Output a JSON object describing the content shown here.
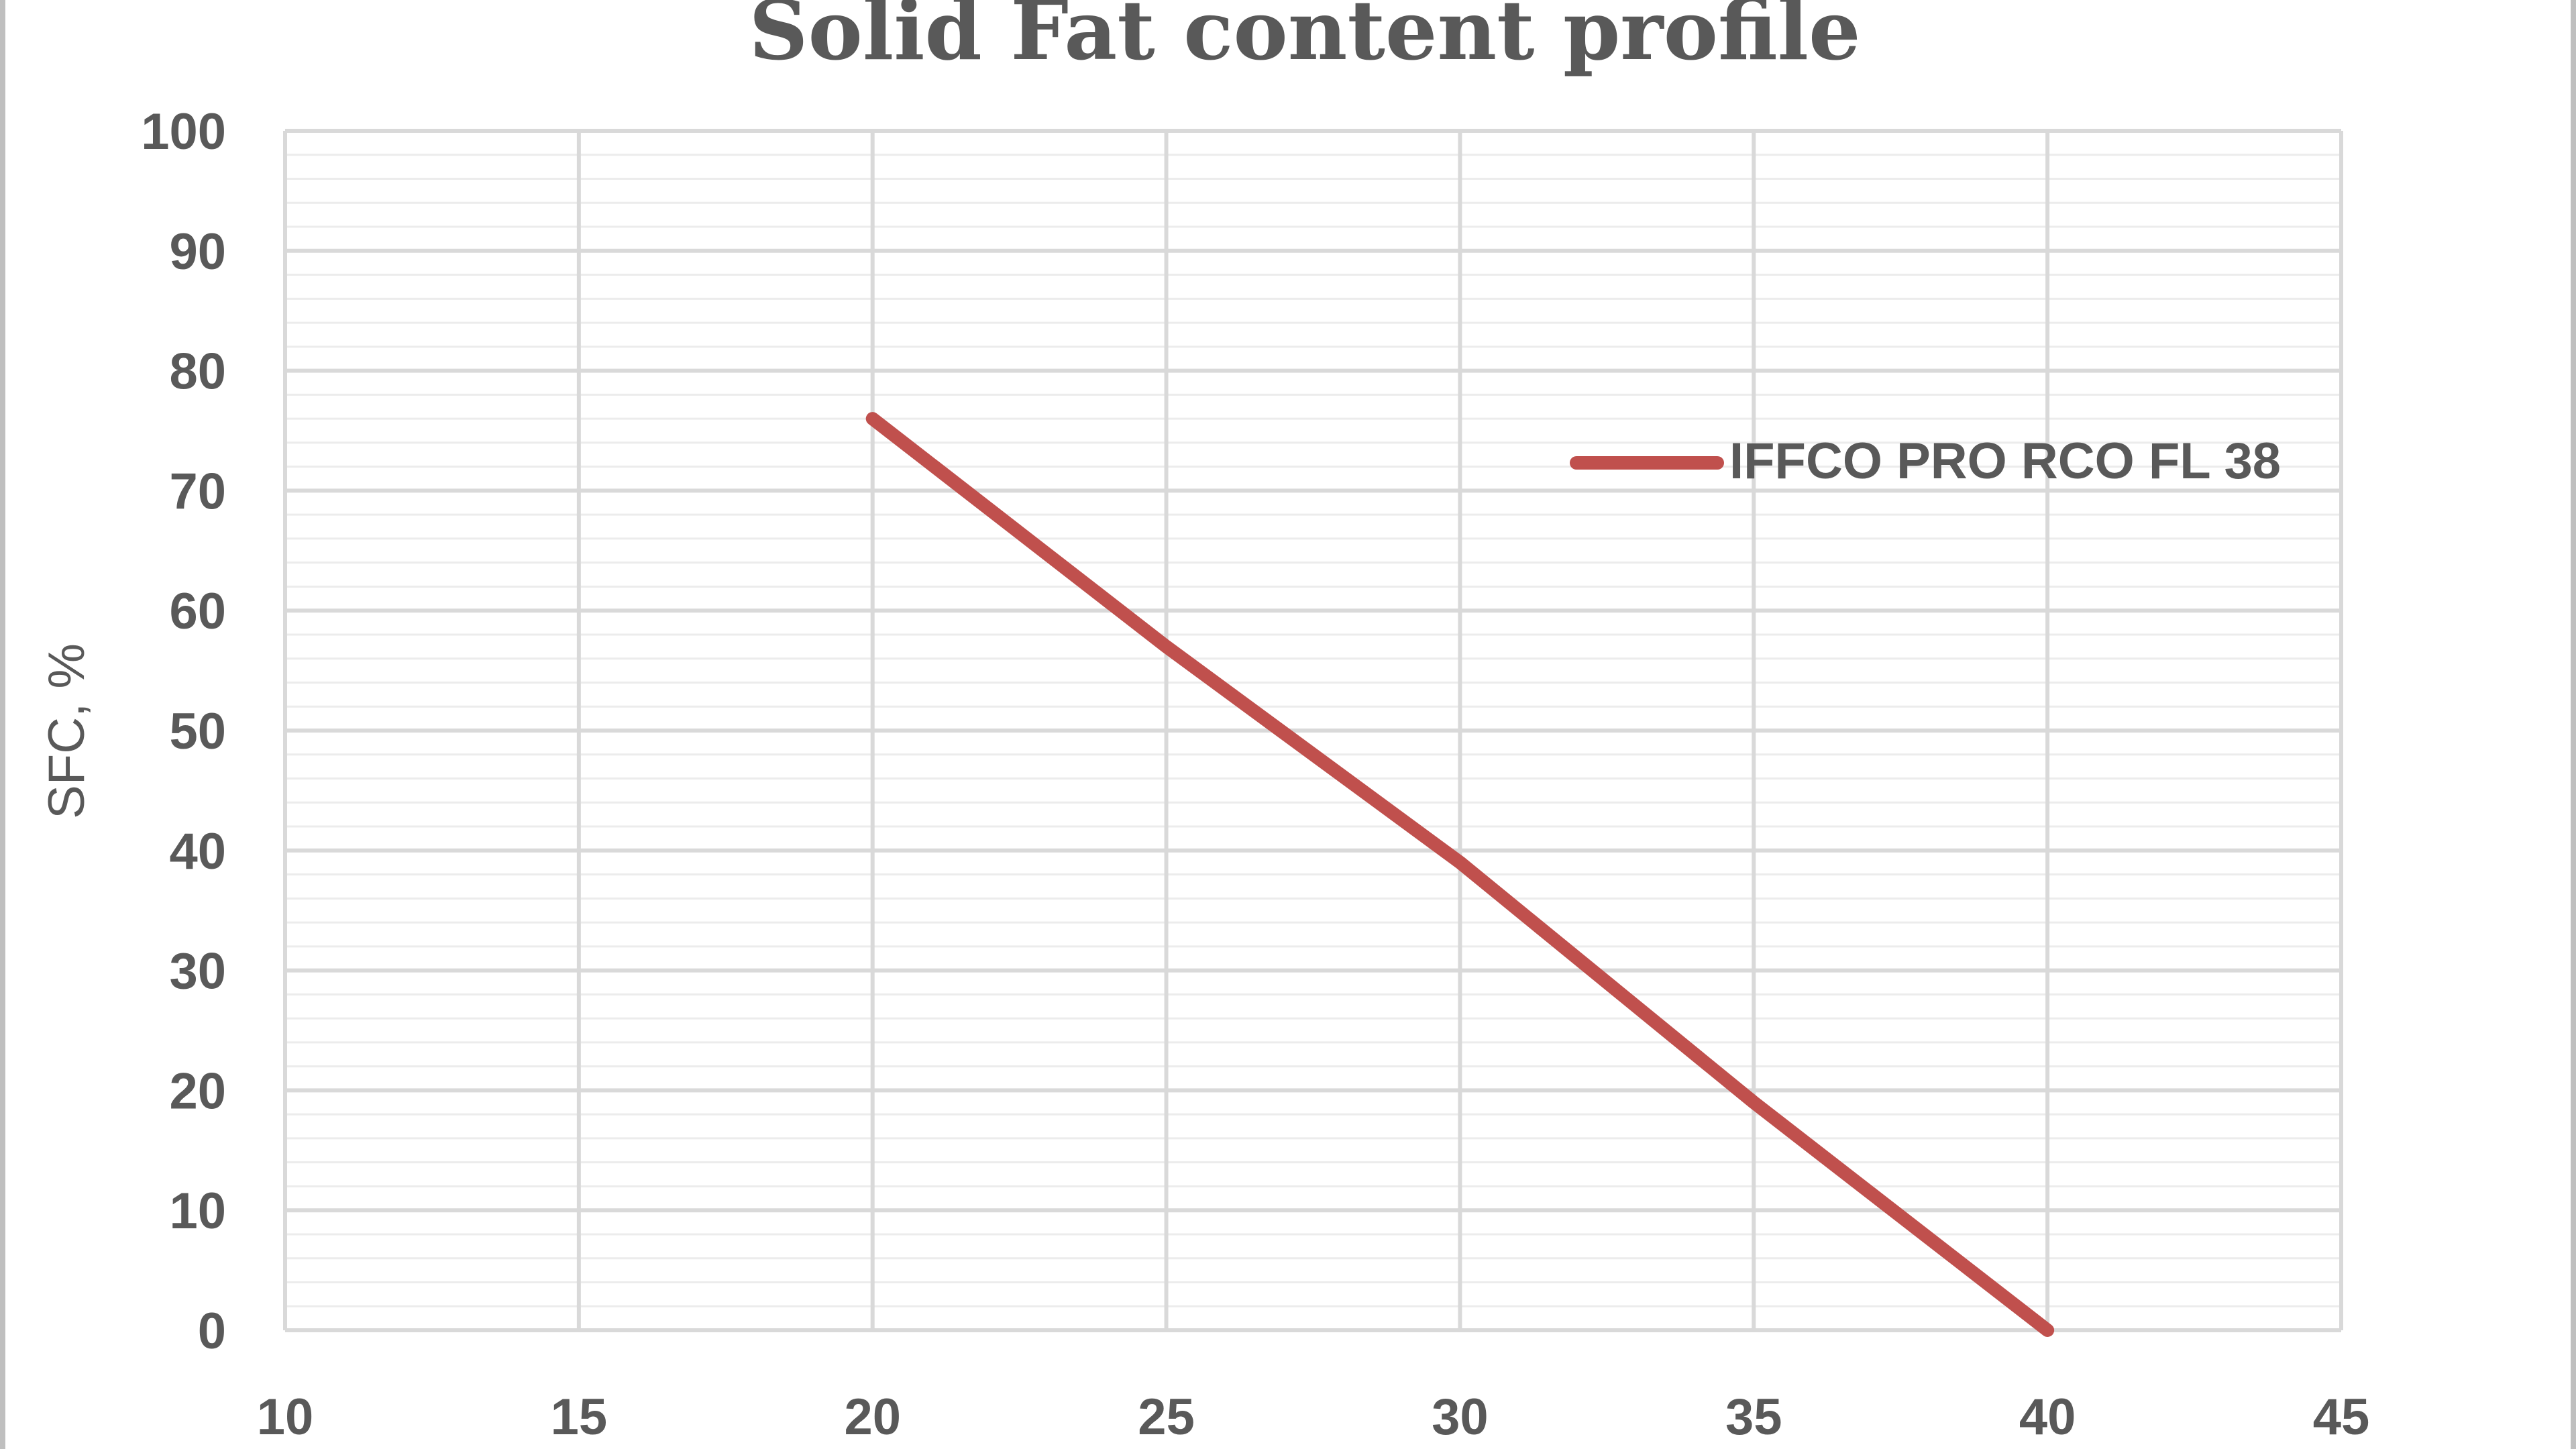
{
  "chart_data": {
    "type": "line",
    "title": "Solid Fat content profile",
    "xlabel": "",
    "ylabel": "SFC, %",
    "xlim": [
      10,
      45
    ],
    "ylim": [
      0,
      100
    ],
    "x_ticks": [
      10,
      15,
      20,
      25,
      30,
      35,
      40,
      45
    ],
    "y_ticks": [
      0,
      10,
      20,
      30,
      40,
      50,
      60,
      70,
      80,
      90,
      100
    ],
    "minor_y_step": 2,
    "grid": true,
    "legend_position": "top-right",
    "series": [
      {
        "name": "IFFCO PRO RCO FL 38",
        "color": "#c0504d",
        "x": [
          20,
          25,
          30,
          35,
          40
        ],
        "y": [
          76,
          57,
          39,
          19,
          0
        ]
      }
    ]
  },
  "colors": {
    "grid_major": "#d9d9d9",
    "grid_minor": "#ececec",
    "text": "#595959",
    "border": "#bfbfbf"
  }
}
